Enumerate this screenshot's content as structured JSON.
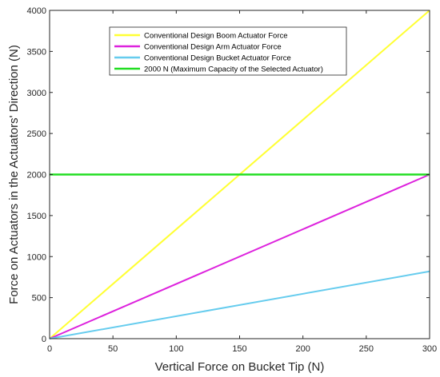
{
  "chart_data": {
    "type": "line",
    "title": "",
    "xlabel": "Vertical Force on Bucket Tip (N)",
    "ylabel": "Force on Actuators in the Actuators' Direction (N)",
    "xlim": [
      0,
      300
    ],
    "ylim": [
      0,
      4000
    ],
    "xticks": [
      0,
      50,
      100,
      150,
      200,
      250,
      300
    ],
    "yticks": [
      0,
      500,
      1000,
      1500,
      2000,
      2500,
      3000,
      3500,
      4000
    ],
    "xtick_labels": [
      "0",
      "50",
      "100",
      "150",
      "200",
      "250",
      "300"
    ],
    "ytick_labels": [
      "0",
      "500",
      "1000",
      "1500",
      "2000",
      "2500",
      "3000",
      "3500",
      "4000"
    ],
    "grid": false,
    "legend_position": "top-center",
    "series": [
      {
        "name": "Conventional Design Boom Actuator Force",
        "color": "#ffff33",
        "x": [
          0,
          300
        ],
        "y": [
          0,
          4000
        ]
      },
      {
        "name": "Conventional Design Arm Actuator Force",
        "color": "#dd22dd",
        "x": [
          0,
          300
        ],
        "y": [
          0,
          2000
        ]
      },
      {
        "name": "Conventional Design Bucket Actuator Force",
        "color": "#66ccee",
        "x": [
          0,
          300
        ],
        "y": [
          0,
          820
        ]
      },
      {
        "name": "2000 N (Maximum Capacity of the Selected Actuator)",
        "color": "#22dd22",
        "x": [
          0,
          300
        ],
        "y": [
          2000,
          2000
        ]
      }
    ]
  }
}
